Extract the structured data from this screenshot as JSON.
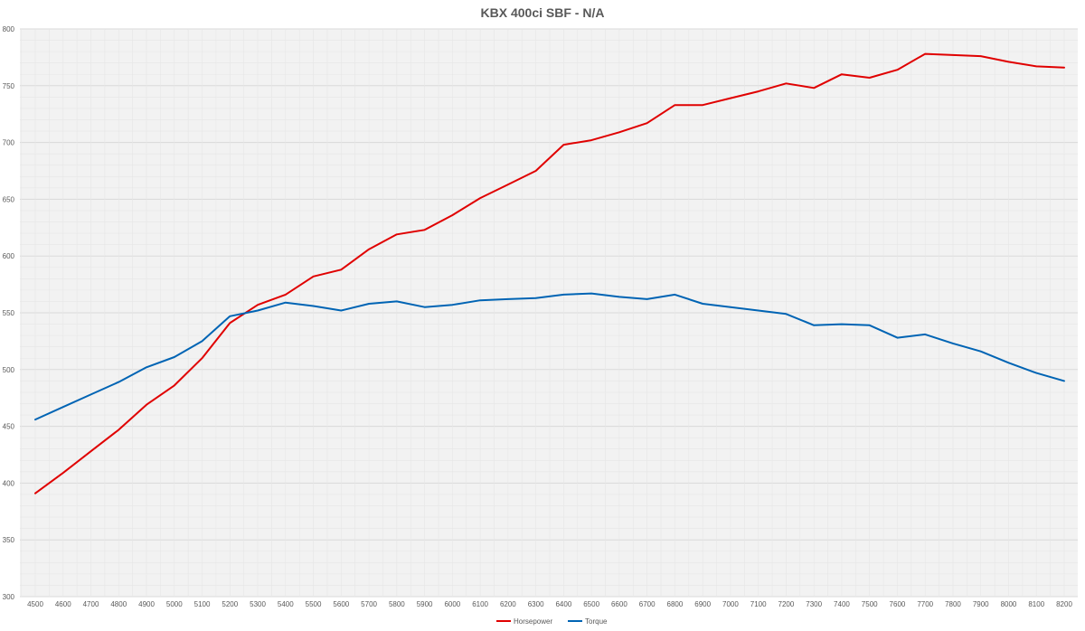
{
  "chart_data": {
    "type": "line",
    "title": "KBX 400ci SBF - N/A",
    "xlabel": "",
    "ylabel": "",
    "ylim": [
      300,
      800
    ],
    "yticks": [
      300,
      350,
      400,
      450,
      500,
      550,
      600,
      650,
      700,
      750,
      800
    ],
    "grid": true,
    "legend": "bottom-center",
    "x": [
      4500,
      4600,
      4700,
      4800,
      4900,
      5000,
      5100,
      5200,
      5300,
      5400,
      5500,
      5600,
      5700,
      5800,
      5900,
      6000,
      6100,
      6200,
      6300,
      6400,
      6500,
      6600,
      6700,
      6800,
      6900,
      7000,
      7100,
      7200,
      7300,
      7400,
      7500,
      7600,
      7700,
      7800,
      7900,
      8000,
      8100,
      8200
    ],
    "series": [
      {
        "name": "Horsepower",
        "color": "#e00000",
        "values": [
          391,
          409,
          428,
          447,
          469,
          486,
          510,
          541,
          557,
          566,
          582,
          588,
          606,
          619,
          623,
          636,
          651,
          663,
          675,
          698,
          702,
          709,
          717,
          733,
          733,
          739,
          745,
          752,
          748,
          760,
          757,
          764,
          778,
          777,
          776,
          771,
          767,
          766
        ]
      },
      {
        "name": "Torque",
        "color": "#0064b4",
        "values": [
          456,
          467,
          478,
          489,
          502,
          511,
          525,
          547,
          552,
          559,
          556,
          552,
          558,
          560,
          555,
          557,
          561,
          562,
          563,
          566,
          567,
          564,
          562,
          566,
          558,
          555,
          552,
          549,
          539,
          540,
          539,
          528,
          531,
          523,
          516,
          506,
          497,
          490
        ]
      }
    ]
  }
}
